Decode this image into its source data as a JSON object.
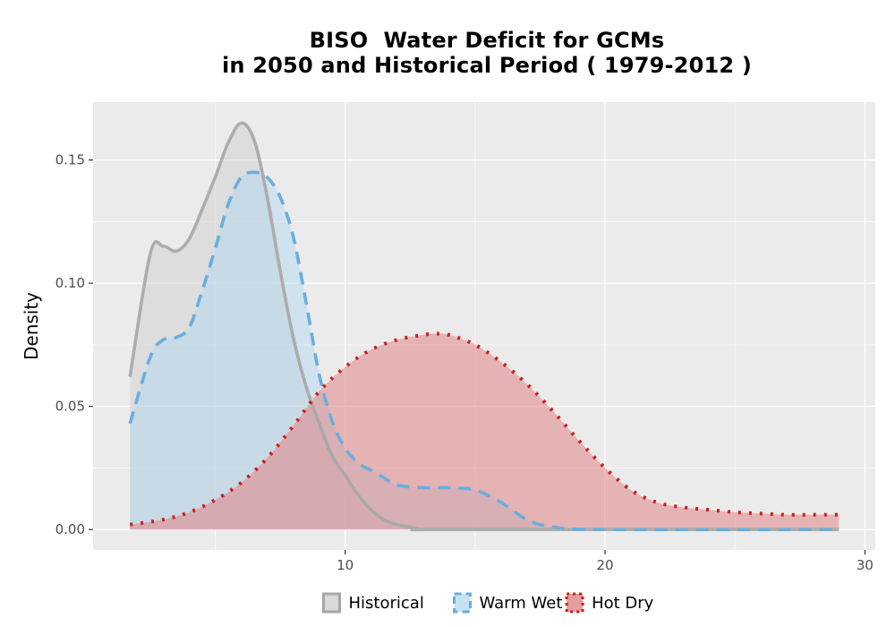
{
  "chart_data": {
    "type": "area",
    "title_lines": [
      "BISO  Water Deficit for GCMs",
      "in 2050 and Historical Period ( 1979-2012 )"
    ],
    "xlabel": "",
    "ylabel": "Density",
    "xlim": [
      0.3,
      30.4
    ],
    "ylim": [
      -0.0083,
      0.1735
    ],
    "x_ticks": [
      10,
      20,
      30
    ],
    "y_ticks": [
      0.0,
      0.05,
      0.1,
      0.15
    ],
    "y_tick_labels": [
      "0.00",
      "0.05",
      "0.10",
      "0.15"
    ],
    "grid": true,
    "legend_position": "bottom",
    "series": [
      {
        "name": "Historical",
        "line_color": "#a6a6a6",
        "fill_color": "#d3d3d3",
        "fill_opacity": 0.6,
        "line_style": "solid",
        "x": [
          1.72,
          2.5,
          3.0,
          3.5,
          4.0,
          4.5,
          5.0,
          5.5,
          6.0,
          6.5,
          7.0,
          7.5,
          8.0,
          8.5,
          9.0,
          9.5,
          10.0,
          10.5,
          11.0,
          11.5,
          12.0,
          12.5,
          13.0,
          14.0,
          29.0
        ],
        "y": [
          0.062,
          0.112,
          0.115,
          0.113,
          0.118,
          0.13,
          0.143,
          0.157,
          0.165,
          0.158,
          0.135,
          0.105,
          0.078,
          0.058,
          0.043,
          0.03,
          0.022,
          0.014,
          0.008,
          0.004,
          0.002,
          0.001,
          0.0,
          0.0,
          0.0
        ]
      },
      {
        "name": "Warm Wet",
        "line_color": "#6aaede",
        "fill_color": "#aed6f1",
        "fill_opacity": 0.45,
        "line_style": "dashed",
        "x": [
          1.72,
          2.5,
          3.0,
          3.5,
          4.0,
          4.5,
          5.0,
          5.5,
          6.0,
          6.5,
          7.0,
          7.5,
          8.0,
          8.5,
          9.0,
          9.5,
          10.0,
          10.5,
          11.0,
          11.5,
          12.0,
          13.0,
          14.0,
          15.0,
          16.0,
          17.0,
          18.0,
          20.0,
          29.0
        ],
        "y": [
          0.043,
          0.07,
          0.077,
          0.078,
          0.082,
          0.097,
          0.114,
          0.132,
          0.143,
          0.145,
          0.143,
          0.135,
          0.119,
          0.092,
          0.063,
          0.044,
          0.033,
          0.027,
          0.024,
          0.021,
          0.018,
          0.017,
          0.017,
          0.016,
          0.011,
          0.004,
          0.001,
          0.0,
          0.0
        ]
      },
      {
        "name": "Hot Dry",
        "line_color": "#cc1e1e",
        "fill_color": "#e08585",
        "fill_opacity": 0.55,
        "line_style": "dotted",
        "x": [
          1.72,
          3.0,
          4.0,
          5.0,
          6.0,
          7.0,
          8.0,
          9.0,
          10.0,
          11.0,
          12.0,
          13.0,
          13.5,
          14.0,
          15.0,
          16.0,
          17.0,
          18.0,
          19.0,
          20.0,
          21.0,
          22.0,
          23.0,
          24.0,
          25.0,
          26.0,
          27.0,
          28.0,
          29.0
        ],
        "y": [
          0.002,
          0.004,
          0.007,
          0.012,
          0.019,
          0.029,
          0.042,
          0.056,
          0.066,
          0.073,
          0.077,
          0.079,
          0.0795,
          0.079,
          0.075,
          0.068,
          0.059,
          0.048,
          0.036,
          0.025,
          0.016,
          0.011,
          0.009,
          0.008,
          0.007,
          0.0065,
          0.006,
          0.006,
          0.006
        ]
      }
    ]
  }
}
